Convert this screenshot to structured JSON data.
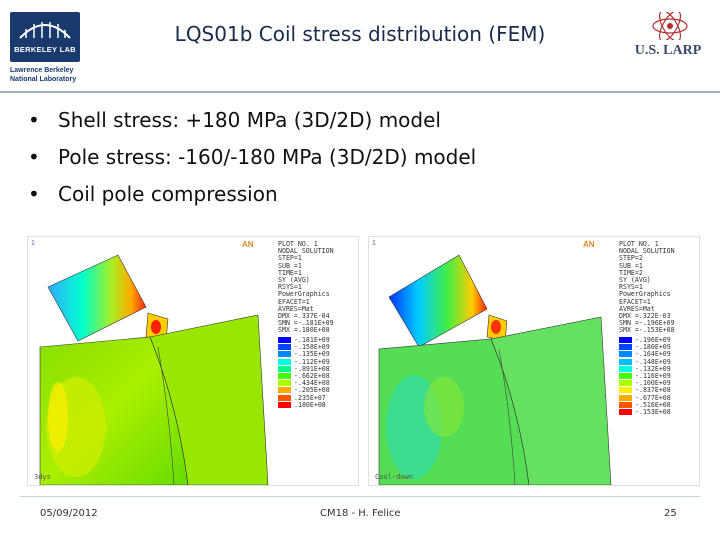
{
  "header": {
    "title": "LQS01b Coil stress distribution (FEM)",
    "lbl_logo_text": "BERKELEY LAB",
    "lbl_subtext": "Lawrence Berkeley National Laboratory",
    "larp_text": "U.S. LARP"
  },
  "bullets": [
    "Shell stress: +180 MPa (3D/2D) model",
    "Pole stress: -160/-180 MPa (3D/2D) model",
    "Coil pole compression"
  ],
  "figures": {
    "left": {
      "corner_num": "1",
      "ansys": "AN",
      "caption": "3dys",
      "info": [
        "PLOT NO.   1",
        "NODAL SOLUTION",
        "STEP=1",
        "SUB =1",
        "TIME=1",
        "SY        (AVG)",
        "RSYS=1",
        "PowerGraphics",
        "EFACET=1",
        "AVRES=Mat",
        "DMX =.337E-04",
        "SMN =-.181E+09",
        "SMX =.180E+08"
      ],
      "legend": [
        "-.181E+09",
        "-.158E+09",
        "-.135E+09",
        "-.112E+09",
        "-.891E+08",
        "-.662E+08",
        "-.434E+08",
        "-.205E+08",
        ".235E+07",
        ".180E+08"
      ]
    },
    "right": {
      "corner_num": "1",
      "ansys": "AN",
      "caption": "Cool-down",
      "info": [
        "PLOT NO.   1",
        "NODAL SOLUTION",
        "STEP=2",
        "SUB =1",
        "TIME=2",
        "SY        (AVG)",
        "RSYS=1",
        "PowerGraphics",
        "EFACET=1",
        "AVRES=Mat",
        "DMX =.322E-03",
        "SMN =-.196E+09",
        "SMX =-.153E+08"
      ],
      "legend": [
        "-.196E+09",
        "-.180E+09",
        "-.164E+09",
        "-.148E+09",
        "-.132E+09",
        "-.116E+09",
        "-.100E+09",
        "-.837E+08",
        "-.677E+08",
        "-.516E+08",
        "-.153E+08"
      ]
    }
  },
  "legend_colors": [
    "#0000ff",
    "#0044ff",
    "#0088ff",
    "#00c0ff",
    "#00ffdd",
    "#00ff88",
    "#44ff00",
    "#aaff00",
    "#ffee00",
    "#ffaa00",
    "#ff5500",
    "#ff0000"
  ],
  "footer": {
    "date": "05/09/2012",
    "center": "CM18 - H. Felice",
    "page": "25"
  }
}
